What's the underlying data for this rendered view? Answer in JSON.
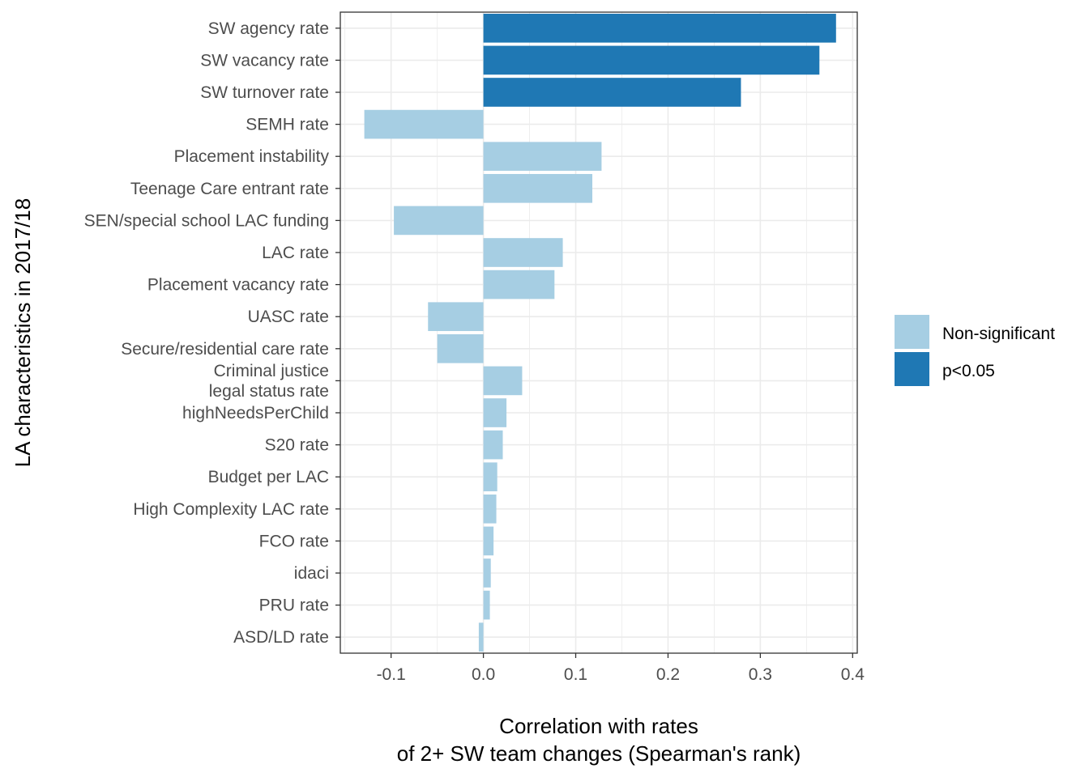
{
  "chart_data": {
    "type": "bar",
    "orientation": "horizontal",
    "xlabel": [
      "Correlation with rates",
      "of 2+ SW team changes (Spearman's rank)"
    ],
    "ylabel": "LA characteristics in 2017/18",
    "xlim": [
      -0.155,
      0.405
    ],
    "xticks": [
      -0.1,
      0.0,
      0.1,
      0.2,
      0.3,
      0.4
    ],
    "xtick_labels": [
      "-0.1",
      "0.0",
      "0.1",
      "0.2",
      "0.3",
      "0.4"
    ],
    "grid": true,
    "legend": {
      "placement": "right",
      "entries": [
        {
          "label": "Non-significant",
          "color": "#a6cee3"
        },
        {
          "label": "p<0.05",
          "color": "#1f78b4"
        }
      ]
    },
    "categories": [
      {
        "label": [
          "SW agency rate"
        ],
        "value": 0.382,
        "significant": true
      },
      {
        "label": [
          "SW vacancy rate"
        ],
        "value": 0.364,
        "significant": true
      },
      {
        "label": [
          "SW turnover rate"
        ],
        "value": 0.279,
        "significant": true
      },
      {
        "label": [
          "SEMH rate"
        ],
        "value": -0.129,
        "significant": false
      },
      {
        "label": [
          "Placement instability"
        ],
        "value": 0.128,
        "significant": false
      },
      {
        "label": [
          "Teenage Care entrant rate"
        ],
        "value": 0.118,
        "significant": false
      },
      {
        "label": [
          "SEN/special school LAC funding"
        ],
        "value": -0.097,
        "significant": false
      },
      {
        "label": [
          "LAC rate"
        ],
        "value": 0.086,
        "significant": false
      },
      {
        "label": [
          "Placement vacancy rate"
        ],
        "value": 0.077,
        "significant": false
      },
      {
        "label": [
          "UASC rate"
        ],
        "value": -0.06,
        "significant": false
      },
      {
        "label": [
          "Secure/residential care rate"
        ],
        "value": -0.05,
        "significant": false
      },
      {
        "label": [
          "Criminal justice",
          "legal status rate"
        ],
        "value": 0.042,
        "significant": false
      },
      {
        "label": [
          "highNeedsPerChild"
        ],
        "value": 0.025,
        "significant": false
      },
      {
        "label": [
          "S20 rate"
        ],
        "value": 0.021,
        "significant": false
      },
      {
        "label": [
          "Budget per LAC"
        ],
        "value": 0.015,
        "significant": false
      },
      {
        "label": [
          "High Complexity LAC rate"
        ],
        "value": 0.014,
        "significant": false
      },
      {
        "label": [
          "FCO rate"
        ],
        "value": 0.011,
        "significant": false
      },
      {
        "label": [
          "idaci"
        ],
        "value": 0.008,
        "significant": false
      },
      {
        "label": [
          "PRU rate"
        ],
        "value": 0.007,
        "significant": false
      },
      {
        "label": [
          "ASD/LD rate"
        ],
        "value": -0.005,
        "significant": false
      }
    ]
  }
}
